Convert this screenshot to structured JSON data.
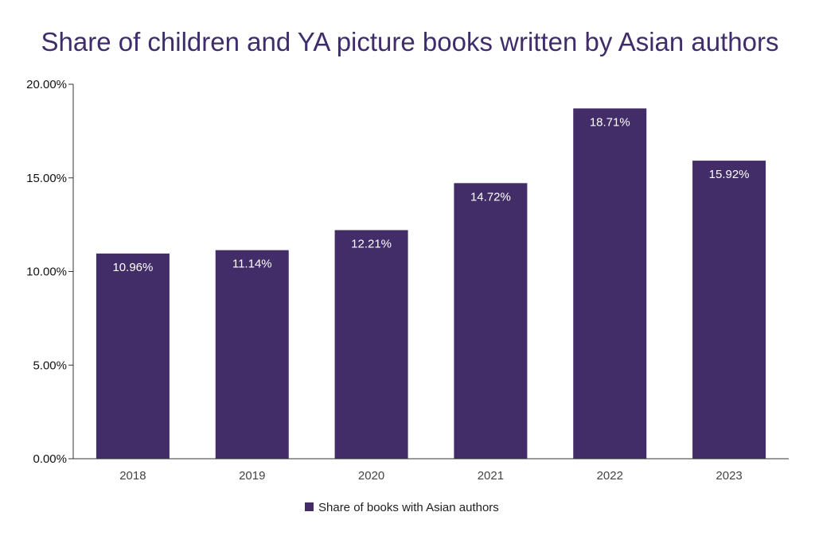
{
  "chart_data": {
    "type": "bar",
    "title": "Share of children and YA picture books written by Asian authors",
    "categories": [
      "2018",
      "2019",
      "2020",
      "2021",
      "2022",
      "2023"
    ],
    "series": [
      {
        "name": "Share of books with Asian authors",
        "values": [
          10.96,
          11.14,
          12.21,
          14.72,
          18.71,
          15.92
        ],
        "labels": [
          "10.96%",
          "11.14%",
          "12.21%",
          "14.72%",
          "18.71%",
          "15.92%"
        ],
        "color": "#422d68"
      }
    ],
    "ylim": [
      0,
      20
    ],
    "yticks": [
      0,
      5,
      10,
      15,
      20
    ],
    "ytick_labels": [
      "0.00%",
      "5.00%",
      "10.00%",
      "15.00%",
      "20.00%"
    ],
    "xlabel": "",
    "ylabel": "",
    "grid": false,
    "legend": "bottom-center"
  }
}
